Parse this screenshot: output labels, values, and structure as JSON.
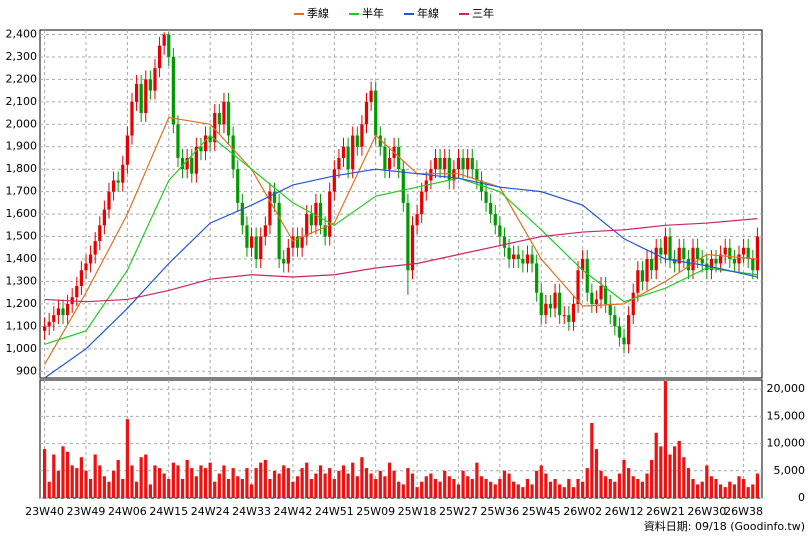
{
  "chart_data": {
    "type": "candlestick",
    "legend": "top",
    "grid": true,
    "up_color": "#e60000",
    "down_color": "#009900",
    "xlim": [
      -1,
      156
    ],
    "xticks": [
      {
        "value": 0,
        "label": "23W40"
      },
      {
        "value": 9,
        "label": "23W49"
      },
      {
        "value": 18,
        "label": "24W06"
      },
      {
        "value": 27,
        "label": "24W15"
      },
      {
        "value": 36,
        "label": "24W24"
      },
      {
        "value": 45,
        "label": "24W33"
      },
      {
        "value": 54,
        "label": "24W42"
      },
      {
        "value": 63,
        "label": "24W51"
      },
      {
        "value": 72,
        "label": "25W09"
      },
      {
        "value": 81,
        "label": "25W18"
      },
      {
        "value": 90,
        "label": "25W27"
      },
      {
        "value": 99,
        "label": "25W36"
      },
      {
        "value": 108,
        "label": "25W45"
      },
      {
        "value": 117,
        "label": "26W02"
      },
      {
        "value": 126,
        "label": "26W12"
      },
      {
        "value": 135,
        "label": "26W21"
      },
      {
        "value": 144,
        "label": "26W30"
      },
      {
        "value": 152,
        "label": "26W38"
      }
    ],
    "ylim": [
      870,
      2420
    ],
    "yticks": [
      900,
      {
        "value": 1000,
        "label": "1,000"
      },
      {
        "value": 1100,
        "label": "1,100"
      },
      {
        "value": 1200,
        "label": "1,200"
      },
      {
        "value": 1300,
        "label": "1,300"
      },
      {
        "value": 1400,
        "label": "1,400"
      },
      {
        "value": 1500,
        "label": "1,500"
      },
      {
        "value": 1600,
        "label": "1,600"
      },
      {
        "value": 1700,
        "label": "1,700"
      },
      {
        "value": 1800,
        "label": "1,800"
      },
      {
        "value": 1900,
        "label": "1,900"
      },
      {
        "value": 2000,
        "label": "2,000"
      },
      {
        "value": 2100,
        "label": "2,100"
      },
      {
        "value": 2200,
        "label": "2,200"
      },
      {
        "value": 2300,
        "label": "2,300"
      },
      {
        "value": 2400,
        "label": "2,400"
      }
    ],
    "open": [
      1080,
      1100,
      1120,
      1150,
      1180,
      1150,
      1200,
      1230,
      1280,
      1350,
      1380,
      1420,
      1480,
      1550,
      1620,
      1700,
      1750,
      1740,
      1820,
      1950,
      2100,
      2180,
      2050,
      2200,
      2150,
      2250,
      2350,
      2400,
      2300,
      2000,
      1850,
      1800,
      1850,
      1780,
      1900,
      1880,
      1950,
      1920,
      2050,
      2000,
      2100,
      1950,
      1800,
      1650,
      1550,
      1450,
      1500,
      1400,
      1500,
      1550,
      1700,
      1650,
      1400,
      1380,
      1450,
      1500,
      1450,
      1500,
      1600,
      1550,
      1650,
      1550,
      1500,
      1700,
      1800,
      1850,
      1900,
      1800,
      1950,
      1900,
      2000,
      2100,
      2150,
      1950,
      1900,
      1800,
      1850,
      1900,
      1800,
      1650,
      1350,
      1550,
      1600,
      1700,
      1750,
      1800,
      1850,
      1800,
      1850,
      1750,
      1800,
      1850,
      1800,
      1850,
      1800,
      1750,
      1700,
      1650,
      1600,
      1550,
      1500,
      1450,
      1400,
      1420,
      1400,
      1380,
      1420,
      1380,
      1250,
      1150,
      1200,
      1180,
      1250,
      1150,
      1150,
      1120,
      1200,
      1350,
      1400,
      1250,
      1200,
      1220,
      1280,
      1200,
      1150,
      1100,
      1050,
      1020,
      1150,
      1250,
      1350,
      1300,
      1400,
      1350,
      1450,
      1420,
      1500,
      1400,
      1380,
      1450,
      1400,
      1350,
      1450,
      1400,
      1380,
      1350,
      1400,
      1380,
      1420,
      1450,
      1400,
      1380,
      1420,
      1450,
      1400,
      1350
    ],
    "close": [
      1100,
      1120,
      1150,
      1180,
      1150,
      1200,
      1230,
      1280,
      1350,
      1380,
      1420,
      1480,
      1550,
      1620,
      1700,
      1750,
      1740,
      1820,
      1950,
      2100,
      2180,
      2050,
      2200,
      2150,
      2250,
      2350,
      2400,
      2300,
      2000,
      1850,
      1800,
      1850,
      1780,
      1900,
      1880,
      1950,
      1920,
      2050,
      2000,
      2100,
      1950,
      1800,
      1650,
      1550,
      1450,
      1500,
      1400,
      1500,
      1550,
      1700,
      1650,
      1400,
      1380,
      1450,
      1500,
      1450,
      1500,
      1600,
      1550,
      1650,
      1550,
      1500,
      1700,
      1800,
      1850,
      1900,
      1800,
      1950,
      1900,
      2000,
      2100,
      2150,
      1950,
      1900,
      1800,
      1850,
      1900,
      1800,
      1650,
      1350,
      1550,
      1600,
      1700,
      1750,
      1800,
      1850,
      1800,
      1850,
      1750,
      1800,
      1850,
      1800,
      1850,
      1800,
      1750,
      1700,
      1650,
      1600,
      1550,
      1500,
      1450,
      1400,
      1420,
      1400,
      1380,
      1420,
      1380,
      1250,
      1150,
      1200,
      1180,
      1250,
      1150,
      1150,
      1120,
      1200,
      1350,
      1400,
      1250,
      1200,
      1220,
      1280,
      1200,
      1150,
      1100,
      1050,
      1020,
      1150,
      1250,
      1350,
      1300,
      1400,
      1350,
      1450,
      1420,
      1500,
      1400,
      1380,
      1450,
      1400,
      1350,
      1450,
      1400,
      1380,
      1350,
      1400,
      1380,
      1420,
      1450,
      1400,
      1380,
      1420,
      1450,
      1400,
      1350,
      1500
    ],
    "high": [
      1140,
      1160,
      1190,
      1220,
      1220,
      1240,
      1270,
      1320,
      1390,
      1420,
      1460,
      1520,
      1590,
      1660,
      1740,
      1790,
      1790,
      1860,
      1990,
      2140,
      2220,
      2220,
      2240,
      2240,
      2290,
      2390,
      2410,
      2410,
      2340,
      2040,
      1890,
      1890,
      1890,
      1940,
      1940,
      1990,
      1990,
      2090,
      2090,
      2140,
      2140,
      1990,
      1840,
      1690,
      1590,
      1540,
      1540,
      1540,
      1590,
      1740,
      1740,
      1690,
      1440,
      1490,
      1540,
      1540,
      1540,
      1640,
      1640,
      1690,
      1690,
      1590,
      1740,
      1840,
      1890,
      1940,
      1940,
      1990,
      1990,
      2040,
      2140,
      2190,
      2190,
      1990,
      1940,
      1890,
      1940,
      1940,
      1840,
      1690,
      1590,
      1640,
      1740,
      1790,
      1840,
      1890,
      1890,
      1890,
      1890,
      1840,
      1890,
      1890,
      1890,
      1890,
      1840,
      1790,
      1740,
      1690,
      1640,
      1590,
      1540,
      1490,
      1460,
      1460,
      1440,
      1460,
      1460,
      1420,
      1290,
      1240,
      1240,
      1290,
      1290,
      1190,
      1190,
      1240,
      1390,
      1440,
      1440,
      1290,
      1260,
      1320,
      1320,
      1240,
      1190,
      1140,
      1090,
      1190,
      1290,
      1390,
      1390,
      1440,
      1440,
      1490,
      1490,
      1540,
      1540,
      1440,
      1490,
      1490,
      1440,
      1490,
      1490,
      1440,
      1420,
      1440,
      1440,
      1460,
      1490,
      1490,
      1440,
      1460,
      1490,
      1490,
      1440,
      1540
    ],
    "low": [
      1040,
      1060,
      1080,
      1110,
      1110,
      1110,
      1160,
      1190,
      1240,
      1310,
      1340,
      1380,
      1440,
      1510,
      1580,
      1660,
      1700,
      1700,
      1780,
      1910,
      2060,
      2010,
      2010,
      2110,
      2110,
      2210,
      2310,
      2260,
      1960,
      1810,
      1760,
      1760,
      1740,
      1740,
      1840,
      1840,
      1880,
      1880,
      1960,
      1960,
      1910,
      1760,
      1610,
      1510,
      1410,
      1410,
      1360,
      1360,
      1460,
      1510,
      1610,
      1360,
      1340,
      1340,
      1410,
      1410,
      1410,
      1460,
      1510,
      1510,
      1510,
      1460,
      1460,
      1660,
      1760,
      1810,
      1760,
      1760,
      1860,
      1860,
      1960,
      2060,
      1910,
      1860,
      1760,
      1760,
      1810,
      1760,
      1610,
      1240,
      1310,
      1510,
      1560,
      1660,
      1710,
      1760,
      1760,
      1760,
      1710,
      1710,
      1760,
      1760,
      1760,
      1760,
      1710,
      1660,
      1610,
      1560,
      1510,
      1460,
      1410,
      1360,
      1360,
      1360,
      1340,
      1340,
      1340,
      1210,
      1110,
      1110,
      1140,
      1140,
      1110,
      1110,
      1080,
      1080,
      1160,
      1310,
      1210,
      1160,
      1160,
      1180,
      1160,
      1110,
      1060,
      1010,
      980,
      980,
      1110,
      1210,
      1260,
      1260,
      1310,
      1310,
      1380,
      1380,
      1360,
      1340,
      1340,
      1360,
      1310,
      1310,
      1360,
      1340,
      1310,
      1310,
      1340,
      1340,
      1380,
      1360,
      1340,
      1340,
      1380,
      1360,
      1310,
      1310
    ],
    "lines": [
      {
        "name": "季線",
        "color": "#e07020",
        "x": [
          0,
          9,
          18,
          27,
          36,
          45,
          54,
          63,
          72,
          81,
          90,
          99,
          108,
          117,
          126,
          135,
          144,
          155
        ],
        "values": [
          930,
          1250,
          1600,
          2030,
          2000,
          1800,
          1480,
          1560,
          1950,
          1780,
          1780,
          1720,
          1400,
          1190,
          1200,
          1300,
          1420,
          1400
        ]
      },
      {
        "name": "半年",
        "color": "#22cc22",
        "x": [
          0,
          9,
          18,
          27,
          36,
          45,
          54,
          63,
          72,
          81,
          90,
          99,
          108,
          117,
          126,
          135,
          144,
          155
        ],
        "values": [
          1020,
          1080,
          1350,
          1750,
          1950,
          1800,
          1650,
          1550,
          1680,
          1720,
          1760,
          1700,
          1530,
          1350,
          1210,
          1270,
          1360,
          1330
        ]
      },
      {
        "name": "年線",
        "color": "#2255dd",
        "x": [
          0,
          9,
          18,
          27,
          36,
          45,
          54,
          63,
          72,
          81,
          90,
          99,
          108,
          117,
          126,
          135,
          144,
          155
        ],
        "values": [
          870,
          1000,
          1180,
          1380,
          1560,
          1640,
          1730,
          1770,
          1800,
          1780,
          1760,
          1720,
          1700,
          1640,
          1490,
          1400,
          1370,
          1320
        ]
      },
      {
        "name": "三年",
        "color": "#cc2266",
        "x": [
          0,
          9,
          18,
          27,
          36,
          45,
          54,
          63,
          72,
          81,
          90,
          99,
          108,
          117,
          126,
          135,
          144,
          155
        ],
        "values": [
          1220,
          1210,
          1220,
          1260,
          1310,
          1330,
          1320,
          1330,
          1360,
          1380,
          1420,
          1460,
          1500,
          1520,
          1530,
          1550,
          1560,
          1580
        ]
      }
    ],
    "volume": {
      "color": "#ee1111",
      "ylim": [
        0,
        21700
      ],
      "yticks": [
        0,
        {
          "value": 5000,
          "label": "5,000"
        },
        {
          "value": 10000,
          "label": "10,000"
        },
        {
          "value": 15000,
          "label": "15,000"
        },
        {
          "value": 20000,
          "label": "20,000"
        }
      ],
      "values": [
        9000,
        3000,
        8000,
        5000,
        9500,
        8500,
        6000,
        5500,
        7500,
        5000,
        3500,
        8000,
        6000,
        4000,
        3000,
        5000,
        7000,
        3500,
        14500,
        6000,
        3000,
        7500,
        8000,
        2500,
        6000,
        5500,
        4500,
        3500,
        6500,
        6000,
        3500,
        7000,
        5500,
        4000,
        6000,
        5500,
        6500,
        3000,
        4500,
        6000,
        3500,
        5500,
        4000,
        3500,
        5500,
        2500,
        5500,
        6500,
        7000,
        3500,
        5000,
        4500,
        6000,
        5500,
        3000,
        4000,
        5500,
        6500,
        3500,
        4500,
        6000,
        4500,
        5500,
        3500,
        5000,
        6000,
        4500,
        6500,
        4000,
        7500,
        5500,
        4500,
        3500,
        5000,
        4000,
        6500,
        5000,
        3000,
        2500,
        5500,
        4500,
        2000,
        3000,
        4000,
        4500,
        3500,
        3000,
        5000,
        4000,
        3500,
        2500,
        5000,
        4000,
        3500,
        6500,
        4000,
        3500,
        3000,
        2500,
        3500,
        5000,
        4500,
        3000,
        2500,
        2000,
        3500,
        2500,
        5000,
        6000,
        4500,
        3000,
        3500,
        2500,
        2000,
        3500,
        2000,
        3500,
        3000,
        5500,
        13800,
        9000,
        5000,
        4000,
        3500,
        3000,
        4500,
        7000,
        5500,
        4000,
        3500,
        3000,
        4500,
        7000,
        12000,
        9500,
        21500,
        8000,
        9500,
        10500,
        7500,
        5500,
        3500,
        2500,
        3000,
        6000,
        4000,
        3500,
        2500,
        2000,
        3000,
        2500,
        4000,
        3500,
        2000,
        2500,
        4500
      ]
    },
    "footnote": "資料日期: 09/18 (Goodinfo.tw)"
  }
}
